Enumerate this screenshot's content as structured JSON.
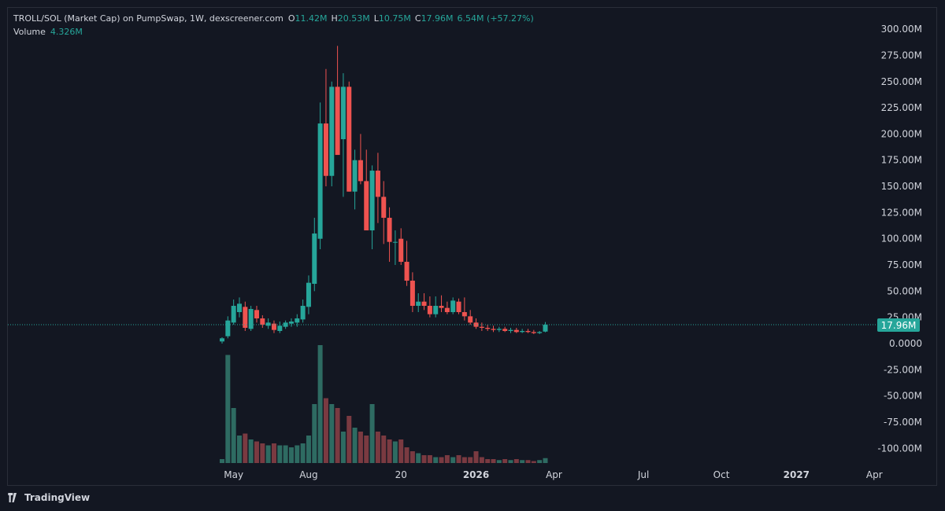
{
  "legend": {
    "title": "TROLL/SOL (Market Cap) on PumpSwap, 1W, dexscreener.com",
    "o_label": "O",
    "o_value": "11.42M",
    "h_label": "H",
    "h_value": "20.53M",
    "l_label": "L",
    "l_value": "10.75M",
    "c_label": "C",
    "c_value": "17.96M",
    "change": "6.54M (+57.27%)",
    "volume_label": "Volume",
    "volume_value": "4.326M"
  },
  "footer": {
    "brand": "TradingView",
    "logo_icon": "tradingview-logo-icon"
  },
  "colors": {
    "background": "#131722",
    "up": "#26a69a",
    "down": "#ef5350",
    "volume_up": "#2e6b62",
    "volume_down": "#7a3a41",
    "price_line": "#26a69a",
    "text": "#d1d4dc"
  },
  "chart_data": {
    "type": "candlestick",
    "interval": "1W",
    "price_axis": {
      "ticks": [
        "300.00M",
        "275.00M",
        "250.00M",
        "225.00M",
        "200.00M",
        "175.00M",
        "150.00M",
        "125.00M",
        "100.00M",
        "75.00M",
        "50.00M",
        "25.00M",
        "0.0000",
        "-25.00M",
        "-50.00M",
        "-75.00M",
        "-100.00M"
      ],
      "tick_values": [
        300,
        275,
        250,
        225,
        200,
        175,
        150,
        125,
        100,
        75,
        50,
        25,
        0,
        -25,
        -50,
        -75,
        -100
      ],
      "range": [
        -110,
        310
      ],
      "unit": "M",
      "last_price_label": "17.96M",
      "last_price_value": 17.96
    },
    "time_axis": {
      "labels": [
        "May",
        "Aug",
        "20",
        "2026",
        "Apr",
        "Jul",
        "Oct",
        "2027",
        "Apr"
      ],
      "label_weeks": [
        2,
        15,
        31,
        44,
        57.5,
        73,
        86.5,
        99.5,
        113
      ],
      "bold": [
        false,
        false,
        false,
        true,
        false,
        false,
        false,
        true,
        false
      ]
    },
    "candles": [
      {
        "w": 0,
        "o": 2,
        "h": 6,
        "l": 0,
        "c": 5
      },
      {
        "w": 1,
        "o": 7,
        "h": 26,
        "l": 5,
        "c": 22
      },
      {
        "w": 2,
        "o": 20,
        "h": 42,
        "l": 18,
        "c": 36
      },
      {
        "w": 3,
        "o": 30,
        "h": 44,
        "l": 25,
        "c": 38
      },
      {
        "w": 4,
        "o": 35,
        "h": 40,
        "l": 12,
        "c": 15
      },
      {
        "w": 5,
        "o": 14,
        "h": 36,
        "l": 12,
        "c": 33
      },
      {
        "w": 6,
        "o": 32,
        "h": 36,
        "l": 20,
        "c": 24
      },
      {
        "w": 7,
        "o": 24,
        "h": 27,
        "l": 15,
        "c": 18
      },
      {
        "w": 8,
        "o": 17,
        "h": 24,
        "l": 14,
        "c": 20
      },
      {
        "w": 9,
        "o": 19,
        "h": 22,
        "l": 10,
        "c": 13
      },
      {
        "w": 10,
        "o": 12,
        "h": 21,
        "l": 10,
        "c": 17
      },
      {
        "w": 11,
        "o": 16,
        "h": 22,
        "l": 14,
        "c": 20
      },
      {
        "w": 12,
        "o": 19,
        "h": 24,
        "l": 16,
        "c": 21
      },
      {
        "w": 13,
        "o": 20,
        "h": 28,
        "l": 16,
        "c": 24
      },
      {
        "w": 14,
        "o": 23,
        "h": 42,
        "l": 20,
        "c": 36
      },
      {
        "w": 15,
        "o": 35,
        "h": 65,
        "l": 28,
        "c": 58
      },
      {
        "w": 16,
        "o": 57,
        "h": 120,
        "l": 50,
        "c": 105
      },
      {
        "w": 17,
        "o": 100,
        "h": 230,
        "l": 90,
        "c": 210
      },
      {
        "w": 18,
        "o": 210,
        "h": 262,
        "l": 150,
        "c": 160
      },
      {
        "w": 19,
        "o": 160,
        "h": 250,
        "l": 150,
        "c": 245
      },
      {
        "w": 20,
        "o": 245,
        "h": 284,
        "l": 180,
        "c": 180
      },
      {
        "w": 21,
        "o": 195,
        "h": 258,
        "l": 140,
        "c": 245
      },
      {
        "w": 22,
        "o": 245,
        "h": 250,
        "l": 145,
        "c": 145
      },
      {
        "w": 23,
        "o": 145,
        "h": 185,
        "l": 128,
        "c": 175
      },
      {
        "w": 24,
        "o": 175,
        "h": 200,
        "l": 152,
        "c": 155
      },
      {
        "w": 25,
        "o": 155,
        "h": 185,
        "l": 110,
        "c": 108
      },
      {
        "w": 26,
        "o": 108,
        "h": 170,
        "l": 90,
        "c": 165
      },
      {
        "w": 27,
        "o": 165,
        "h": 182,
        "l": 115,
        "c": 140
      },
      {
        "w": 28,
        "o": 140,
        "h": 155,
        "l": 95,
        "c": 120
      },
      {
        "w": 29,
        "o": 120,
        "h": 130,
        "l": 78,
        "c": 97
      },
      {
        "w": 30,
        "o": 97,
        "h": 108,
        "l": 75,
        "c": 97
      },
      {
        "w": 31,
        "o": 100,
        "h": 110,
        "l": 75,
        "c": 78
      },
      {
        "w": 32,
        "o": 78,
        "h": 98,
        "l": 55,
        "c": 60
      },
      {
        "w": 33,
        "o": 60,
        "h": 68,
        "l": 30,
        "c": 36
      },
      {
        "w": 34,
        "o": 36,
        "h": 48,
        "l": 30,
        "c": 40
      },
      {
        "w": 35,
        "o": 40,
        "h": 48,
        "l": 32,
        "c": 36
      },
      {
        "w": 36,
        "o": 36,
        "h": 45,
        "l": 25,
        "c": 28
      },
      {
        "w": 37,
        "o": 28,
        "h": 45,
        "l": 25,
        "c": 36
      },
      {
        "w": 38,
        "o": 36,
        "h": 46,
        "l": 30,
        "c": 34
      },
      {
        "w": 39,
        "o": 34,
        "h": 40,
        "l": 28,
        "c": 30
      },
      {
        "w": 40,
        "o": 30,
        "h": 44,
        "l": 28,
        "c": 41
      },
      {
        "w": 41,
        "o": 40,
        "h": 43,
        "l": 28,
        "c": 30
      },
      {
        "w": 42,
        "o": 30,
        "h": 44,
        "l": 22,
        "c": 26
      },
      {
        "w": 43,
        "o": 26,
        "h": 32,
        "l": 18,
        "c": 20
      },
      {
        "w": 44,
        "o": 20,
        "h": 24,
        "l": 14,
        "c": 16
      },
      {
        "w": 45,
        "o": 16,
        "h": 20,
        "l": 12,
        "c": 15
      },
      {
        "w": 46,
        "o": 15,
        "h": 18,
        "l": 12,
        "c": 14
      },
      {
        "w": 47,
        "o": 14,
        "h": 17,
        "l": 11,
        "c": 13
      },
      {
        "w": 48,
        "o": 13,
        "h": 16,
        "l": 11,
        "c": 14
      },
      {
        "w": 49,
        "o": 14,
        "h": 16,
        "l": 11,
        "c": 12
      },
      {
        "w": 50,
        "o": 12,
        "h": 15,
        "l": 10,
        "c": 13
      },
      {
        "w": 51,
        "o": 13,
        "h": 15,
        "l": 10,
        "c": 11
      },
      {
        "w": 52,
        "o": 11,
        "h": 14,
        "l": 10,
        "c": 12
      },
      {
        "w": 53,
        "o": 12,
        "h": 14,
        "l": 10,
        "c": 11
      },
      {
        "w": 54,
        "o": 11,
        "h": 13,
        "l": 9,
        "c": 10
      },
      {
        "w": 55,
        "o": 10,
        "h": 12,
        "l": 9,
        "c": 11
      },
      {
        "w": 56,
        "o": 11.42,
        "h": 20.53,
        "l": 10.75,
        "c": 17.96
      }
    ],
    "volume": [
      2,
      55,
      28,
      14,
      15,
      12,
      11,
      10,
      9,
      10,
      9,
      9,
      8,
      9,
      10,
      14,
      30,
      60,
      33,
      30,
      28,
      16,
      24,
      18,
      16,
      14,
      30,
      16,
      14,
      12,
      11,
      12,
      8,
      6,
      5,
      4,
      4,
      3,
      3,
      4,
      3,
      4,
      3,
      3,
      6,
      3,
      2,
      2,
      1.5,
      2,
      1.5,
      2,
      1.5,
      1.5,
      1,
      1.5,
      2.5
    ],
    "volume_direction": [
      "up",
      "up",
      "up",
      "up",
      "down",
      "up",
      "down",
      "down",
      "up",
      "down",
      "up",
      "up",
      "up",
      "up",
      "up",
      "up",
      "up",
      "up",
      "down",
      "up",
      "down",
      "up",
      "down",
      "up",
      "down",
      "down",
      "up",
      "down",
      "down",
      "down",
      "up",
      "down",
      "down",
      "down",
      "up",
      "down",
      "down",
      "up",
      "down",
      "down",
      "up",
      "down",
      "down",
      "down",
      "down",
      "down",
      "down",
      "down",
      "up",
      "down",
      "up",
      "down",
      "up",
      "down",
      "down",
      "up",
      "up"
    ]
  }
}
